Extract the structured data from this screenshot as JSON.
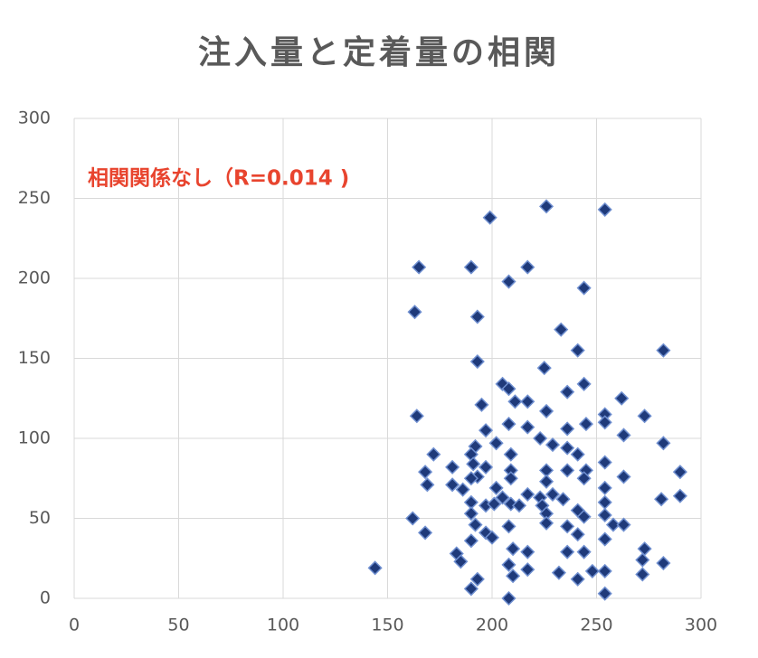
{
  "chart_data": {
    "type": "scatter",
    "title": "注入量と定着量の相関",
    "annotation": "相関関係なし（R=0.014 )",
    "annotation_color": "#e8442e",
    "grid": true,
    "xlim": [
      0,
      300
    ],
    "xticks": [
      0,
      50,
      100,
      150,
      200,
      250,
      300
    ],
    "ylim": [
      0,
      300
    ],
    "yticks": [
      0,
      50,
      100,
      150,
      200,
      250,
      300
    ],
    "series": [
      {
        "color": "#1f3a7a",
        "x": [
          144,
          162,
          168,
          163,
          165,
          164,
          168,
          169,
          172,
          181,
          181,
          183,
          185,
          190,
          193,
          193,
          190,
          193,
          190,
          199,
          208,
          217,
          226,
          254,
          244,
          233,
          241,
          282,
          225,
          236,
          244,
          262,
          205,
          208,
          211,
          217,
          195,
          226,
          254,
          273,
          197,
          208,
          217,
          223,
          236,
          245,
          254,
          263,
          282,
          202,
          192,
          190,
          209,
          229,
          241,
          236,
          254,
          197,
          191,
          209,
          226,
          236,
          245,
          263,
          290,
          193,
          190,
          202,
          209,
          226,
          244,
          186,
          205,
          217,
          223,
          229,
          254,
          281,
          290,
          190,
          197,
          201,
          209,
          213,
          224,
          234,
          241,
          244,
          254,
          254,
          190,
          192,
          197,
          200,
          208,
          226,
          226,
          236,
          241,
          254,
          258,
          263,
          210,
          217,
          236,
          244,
          273,
          272,
          282,
          208,
          217,
          232,
          241,
          248,
          254,
          272,
          210,
          254,
          208
        ],
        "y": [
          19,
          50,
          41,
          179,
          207,
          114,
          79,
          71,
          90,
          82,
          71,
          28,
          23,
          207,
          176,
          148,
          6,
          12,
          36,
          238,
          198,
          207,
          245,
          243,
          194,
          168,
          155,
          155,
          144,
          129,
          134,
          125,
          134,
          131,
          123,
          123,
          121,
          117,
          115,
          114,
          105,
          109,
          107,
          100,
          106,
          109,
          110,
          102,
          97,
          97,
          95,
          90,
          90,
          96,
          90,
          94,
          85,
          82,
          84,
          80,
          80,
          80,
          80,
          76,
          79,
          76,
          75,
          69,
          75,
          73,
          75,
          68,
          63,
          65,
          63,
          65,
          69,
          62,
          64,
          60,
          58,
          59,
          59,
          58,
          58,
          62,
          55,
          51,
          60,
          52,
          53,
          46,
          41,
          38,
          45,
          53,
          47,
          45,
          40,
          37,
          46,
          46,
          31,
          29,
          29,
          29,
          31,
          24,
          22,
          21,
          18,
          16,
          12,
          17,
          17,
          15,
          14,
          3,
          0
        ]
      }
    ]
  }
}
